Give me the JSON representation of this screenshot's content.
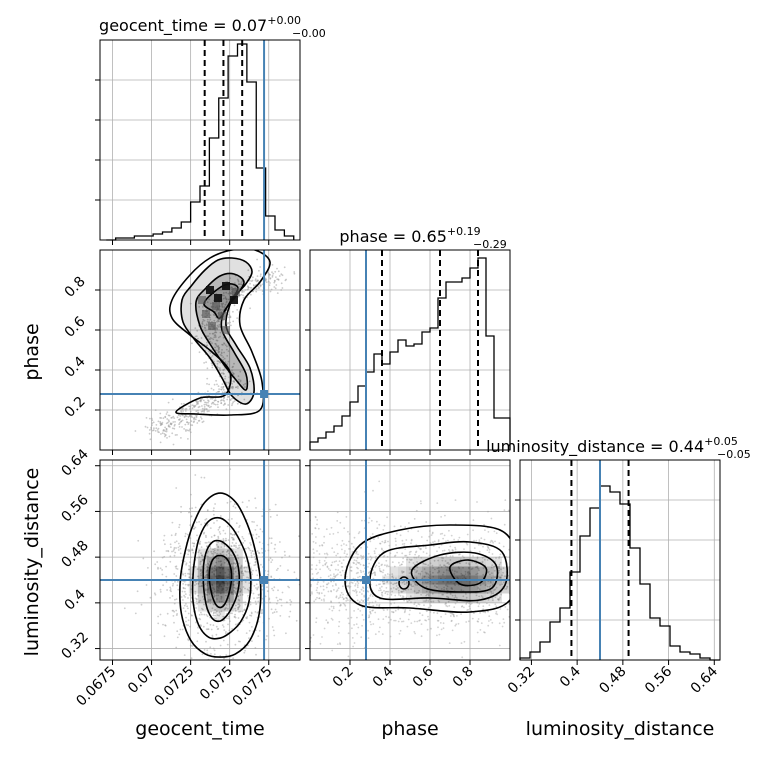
{
  "figure": {
    "layout": "corner-plot 3x3 lower triangle",
    "grid": true,
    "colors": {
      "truth": "#4682b4",
      "hist_line": "#000000",
      "quantile_line": "#000000",
      "grid": "#b0b0b0",
      "scatter": "#9e9e9e"
    }
  },
  "parameters": [
    {
      "name": "geocent_time",
      "median": 0.07,
      "upper": "+0.00",
      "lower": "-0.00",
      "title_main": "geocent_time = 0.07",
      "title_sup": "+0.00",
      "title_sub": "−0.00",
      "xlabel": "geocent_time",
      "ylabel": ""
    },
    {
      "name": "phase",
      "median": 0.65,
      "upper": "+0.19",
      "lower": "-0.29",
      "title_main": "phase = 0.65",
      "title_sup": "+0.19",
      "title_sub": "−0.29",
      "xlabel": "phase",
      "ylabel": "phase"
    },
    {
      "name": "luminosity_distance",
      "median": 0.44,
      "upper": "+0.05",
      "lower": "-0.05",
      "title_main": "luminosity_distance = 0.44",
      "title_sup": "+0.05",
      "title_sub": "−0.05",
      "xlabel": "luminosity_distance",
      "ylabel": "luminosity_distance"
    }
  ],
  "chart_data": [
    {
      "type": "histogram",
      "panel": "geocent_time-1d",
      "xlim": [
        0.0667,
        0.0795
      ],
      "ylim": [
        0,
        1
      ],
      "xticks": [
        0.0675,
        0.07,
        0.0725,
        0.075,
        0.0775
      ],
      "quantiles": [
        0.0734,
        0.0746,
        0.0758
      ],
      "truth": 0.0772,
      "bins_x": [
        0.0671,
        0.0677,
        0.0683,
        0.0689,
        0.0695,
        0.0701,
        0.0707,
        0.0713,
        0.0719,
        0.0725,
        0.0731,
        0.0737,
        0.0743,
        0.0749,
        0.0755,
        0.0761,
        0.0767,
        0.0773,
        0.0779,
        0.0785,
        0.0791
      ],
      "counts": [
        0.0,
        0.01,
        0.01,
        0.02,
        0.02,
        0.03,
        0.04,
        0.06,
        0.09,
        0.19,
        0.27,
        0.51,
        0.71,
        0.92,
        0.98,
        0.79,
        0.36,
        0.12,
        0.05,
        0.02,
        0.0
      ]
    },
    {
      "type": "histogram",
      "panel": "phase-1d",
      "xlim": [
        0.0,
        1.0
      ],
      "ylim": [
        0,
        1
      ],
      "xticks": [
        0.2,
        0.4,
        0.6,
        0.8
      ],
      "quantiles": [
        0.36,
        0.65,
        0.84
      ],
      "truth": 0.28,
      "bins_x": [
        0.0,
        0.04,
        0.08,
        0.12,
        0.16,
        0.2,
        0.24,
        0.28,
        0.32,
        0.36,
        0.4,
        0.44,
        0.48,
        0.52,
        0.56,
        0.6,
        0.64,
        0.68,
        0.72,
        0.76,
        0.8,
        0.84,
        0.88,
        0.92,
        0.96,
        1.0
      ],
      "counts": [
        0.04,
        0.06,
        0.09,
        0.12,
        0.17,
        0.24,
        0.32,
        0.39,
        0.48,
        0.43,
        0.49,
        0.55,
        0.52,
        0.53,
        0.59,
        0.61,
        0.76,
        0.84,
        0.84,
        0.86,
        0.91,
        0.96,
        0.57,
        0.16,
        0.16
      ]
    },
    {
      "type": "histogram",
      "panel": "luminosity_distance-1d",
      "xlim": [
        0.3,
        0.65
      ],
      "ylim": [
        0,
        1
      ],
      "xticks": [
        0.32,
        0.4,
        0.48,
        0.56,
        0.64
      ],
      "quantiles": [
        0.39,
        0.44,
        0.49
      ],
      "truth": 0.44,
      "bins_x": [
        0.3,
        0.3175,
        0.335,
        0.3525,
        0.37,
        0.3875,
        0.405,
        0.4225,
        0.44,
        0.4575,
        0.475,
        0.4925,
        0.51,
        0.5275,
        0.545,
        0.5625,
        0.58,
        0.5975,
        0.615,
        0.6325,
        0.65
      ],
      "counts": [
        0.01,
        0.04,
        0.09,
        0.19,
        0.26,
        0.44,
        0.62,
        0.76,
        0.87,
        0.84,
        0.78,
        0.56,
        0.38,
        0.21,
        0.17,
        0.07,
        0.04,
        0.03,
        0.01,
        0.0
      ]
    },
    {
      "type": "scatter-density",
      "panel": "phase-vs-geocent_time",
      "x": "geocent_time",
      "y": "phase",
      "xlim": [
        0.0667,
        0.0795
      ],
      "ylim": [
        0.0,
        1.0
      ],
      "yticks": [
        0.2,
        0.4,
        0.6,
        0.8
      ],
      "truth": [
        0.0772,
        0.28
      ],
      "shape": "banana",
      "centre_path": [
        [
          0.0705,
          0.1
        ],
        [
          0.0725,
          0.18
        ],
        [
          0.0752,
          0.3
        ],
        [
          0.0738,
          0.55
        ],
        [
          0.0744,
          0.78
        ],
        [
          0.0785,
          0.88
        ]
      ]
    },
    {
      "type": "scatter-density",
      "panel": "luminosity_distance-vs-geocent_time",
      "x": "geocent_time",
      "y": "luminosity_distance",
      "xlim": [
        0.0667,
        0.0795
      ],
      "ylim": [
        0.3,
        0.65
      ],
      "yticks": [
        0.32,
        0.4,
        0.48,
        0.56,
        0.64
      ],
      "truth": [
        0.0772,
        0.44
      ],
      "shape": "blob",
      "centre": [
        0.0744,
        0.44
      ]
    },
    {
      "type": "scatter-density",
      "panel": "luminosity_distance-vs-phase",
      "x": "phase",
      "y": "luminosity_distance",
      "xlim": [
        0.0,
        1.0
      ],
      "ylim": [
        0.3,
        0.65
      ],
      "truth": [
        0.28,
        0.44
      ],
      "shape": "elongated",
      "centre": [
        0.7,
        0.44
      ]
    }
  ]
}
